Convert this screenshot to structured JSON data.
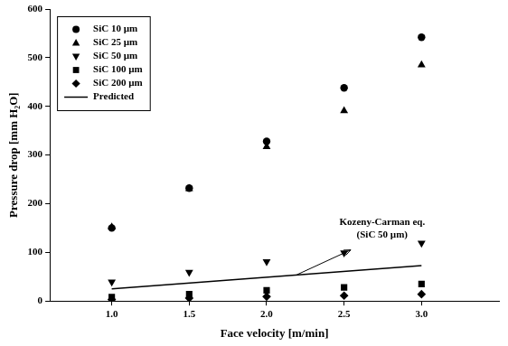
{
  "chart_data": {
    "type": "scatter",
    "x_label": "Face velocity [m/min]",
    "y_label": "Pressure drop [mm H₂O]",
    "x": [
      1.0,
      1.5,
      2.0,
      2.5,
      3.0
    ],
    "series": [
      {
        "name": "SiC 10 µm",
        "color": "#000000",
        "marker": "circle",
        "values": [
          150,
          232,
          328,
          438,
          542
        ]
      },
      {
        "name": "SiC 25 µm",
        "color": "#000000",
        "marker": "triangle",
        "values": [
          153,
          232,
          318,
          392,
          486
        ]
      },
      {
        "name": "SiC 50 µm",
        "color": "#000000",
        "marker": "triangle-down",
        "values": [
          38,
          58,
          80,
          98,
          118
        ]
      },
      {
        "name": "SiC 100 µm",
        "color": "#000000",
        "marker": "square",
        "values": [
          8,
          14,
          22,
          28,
          35
        ]
      },
      {
        "name": "SiC 200 µm",
        "color": "#000000",
        "marker": "diamond",
        "values": [
          3,
          6,
          9,
          11,
          14
        ]
      },
      {
        "name": "Predicted",
        "color": "#000000",
        "type": "line",
        "line_style": "solid",
        "x": [
          1.0,
          3.0
        ],
        "values": [
          25,
          73
        ]
      }
    ],
    "annotations": [
      "Kozeny-Carman eq.",
      "(SiC 50 µm)"
    ],
    "xlim": [
      0.6,
      3.5
    ],
    "xticks": [
      {
        "value": 1.0,
        "label": "1.0"
      },
      {
        "value": 1.5,
        "label": "1.5"
      },
      {
        "value": 2.0,
        "label": "2.0"
      },
      {
        "value": 2.5,
        "label": "2.5"
      },
      {
        "value": 3.0,
        "label": "3.0"
      }
    ],
    "ylim": [
      0,
      600
    ],
    "yticks": [
      0,
      100,
      200,
      300,
      400,
      500,
      600
    ],
    "grid": false,
    "legend": "upper left"
  }
}
